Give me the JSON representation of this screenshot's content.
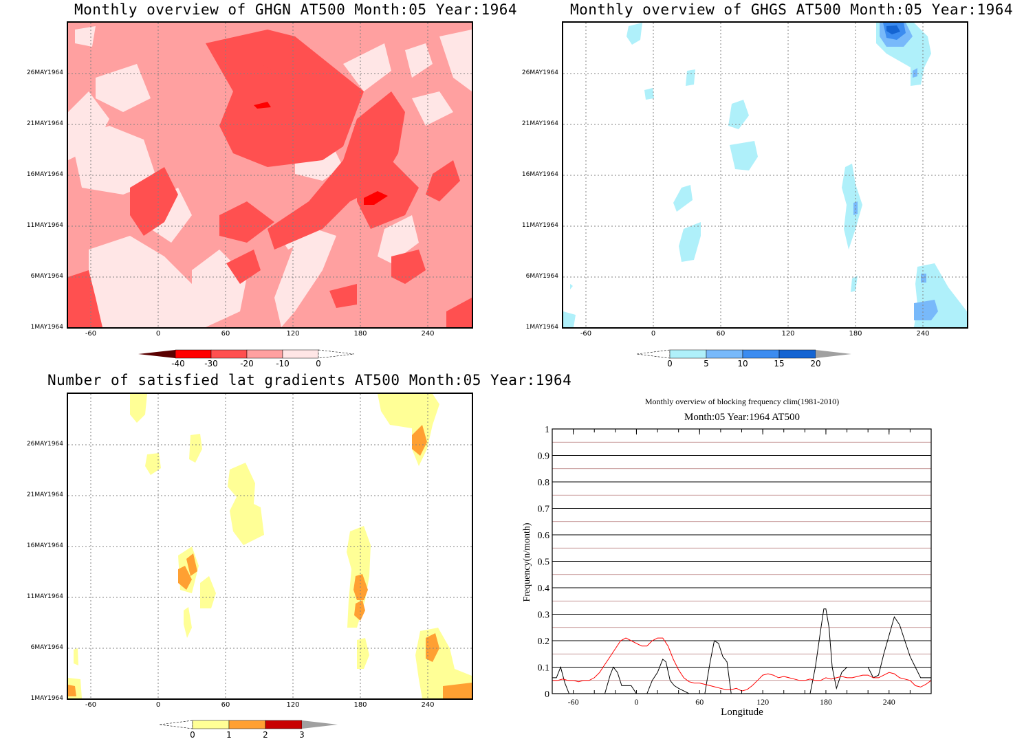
{
  "chart_data": [
    {
      "type": "heatmap",
      "title": "Monthly overview of GHGN AT500 Month:05 Year:1964",
      "x_ticks": [
        "-60",
        "0",
        "60",
        "120",
        "180",
        "240"
      ],
      "y_ticks": [
        "1MAY1964",
        "6MAY1964",
        "11MAY1964",
        "16MAY1964",
        "21MAY1964",
        "26MAY1964"
      ],
      "xlim": [
        -80,
        280
      ],
      "colorbar_labels": [
        "-40",
        "-30",
        "-20",
        "-10",
        "0"
      ],
      "colors": [
        "#5a0000",
        "#ff0000",
        "#ff5050",
        "#ffa0a0",
        "#ffe6e6"
      ]
    },
    {
      "type": "heatmap",
      "title": "Monthly overview of GHGS AT500 Month:05 Year:1964",
      "x_ticks": [
        "-60",
        "0",
        "60",
        "120",
        "180",
        "240"
      ],
      "y_ticks": [
        "1MAY1964",
        "6MAY1964",
        "11MAY1964",
        "16MAY1964",
        "21MAY1964",
        "26MAY1964"
      ],
      "xlim": [
        -80,
        280
      ],
      "colorbar_labels": [
        "0",
        "5",
        "10",
        "15",
        "20"
      ],
      "colors": [
        "#aff0fa",
        "#78b9fa",
        "#3c8cf0",
        "#1464d2",
        "#a0a0a0"
      ]
    },
    {
      "type": "heatmap",
      "title": "Number of satisfied lat gradients AT500 Month:05 Year:1964",
      "x_ticks": [
        "-60",
        "0",
        "60",
        "120",
        "180",
        "240"
      ],
      "y_ticks": [
        "1MAY1964",
        "6MAY1964",
        "11MAY1964",
        "16MAY1964",
        "21MAY1964",
        "26MAY1964"
      ],
      "xlim": [
        -80,
        280
      ],
      "colorbar_labels": [
        "0",
        "1",
        "2",
        "3"
      ],
      "colors": [
        "#ffff96",
        "#ffa032",
        "#c80000",
        "#a0a0a0"
      ]
    },
    {
      "type": "line",
      "title": "Monthly overview of blocking frequency clim(1981-2010)",
      "subtitle": "Month:05 Year:1964  AT500",
      "xlabel": "Longitude",
      "ylabel": "Frequency(n/month)",
      "xlim": [
        -80,
        280
      ],
      "ylim": [
        0,
        1
      ],
      "x_ticks": [
        "-60",
        "0",
        "60",
        "120",
        "180",
        "240"
      ],
      "y_ticks": [
        "0",
        "0.1",
        "0.2",
        "0.3",
        "0.4",
        "0.5",
        "0.6",
        "0.7",
        "0.8",
        "0.9",
        "1"
      ],
      "series": [
        {
          "color": "#000000",
          "x": [
            -80,
            -76,
            -72,
            -68,
            -64,
            -60,
            -50,
            -40,
            -30,
            -25,
            -22,
            -18,
            -14,
            -10,
            -5,
            0,
            5,
            10,
            15,
            20,
            25,
            28,
            32,
            36,
            40,
            45,
            50,
            55,
            60,
            65,
            70,
            74,
            78,
            82,
            86,
            90,
            95,
            100,
            110,
            120,
            130,
            140,
            150,
            160,
            165,
            170,
            175,
            178,
            180,
            183,
            186,
            190,
            195,
            200,
            210,
            220,
            225,
            230,
            235,
            240,
            245,
            250,
            255,
            260,
            265,
            270,
            280
          ],
          "y": [
            0.06,
            0.06,
            0.1,
            0.04,
            0.0,
            0.0,
            0.0,
            0.0,
            0.0,
            0.07,
            0.1,
            0.08,
            0.03,
            0.03,
            0.03,
            0.0,
            0.0,
            0.0,
            0.05,
            0.08,
            0.13,
            0.12,
            0.05,
            0.03,
            0.02,
            0.01,
            0.0,
            0.0,
            0.0,
            0.0,
            0.12,
            0.2,
            0.19,
            0.14,
            0.12,
            0.0,
            0.0,
            0.0,
            0.0,
            0.0,
            0.0,
            0.0,
            0.0,
            0.0,
            0.0,
            0.1,
            0.24,
            0.32,
            0.32,
            0.25,
            0.1,
            0.02,
            0.08,
            0.1,
            0.1,
            0.1,
            0.06,
            0.07,
            0.15,
            0.22,
            0.29,
            0.26,
            0.2,
            0.14,
            0.1,
            0.06,
            0.06
          ]
        },
        {
          "color": "#ff0000",
          "x": [
            -80,
            -75,
            -70,
            -65,
            -60,
            -55,
            -50,
            -45,
            -40,
            -35,
            -30,
            -25,
            -20,
            -15,
            -10,
            -5,
            0,
            5,
            10,
            15,
            20,
            25,
            30,
            35,
            40,
            45,
            50,
            55,
            60,
            65,
            70,
            75,
            80,
            85,
            90,
            95,
            100,
            105,
            110,
            115,
            120,
            125,
            130,
            135,
            140,
            145,
            150,
            155,
            160,
            165,
            170,
            175,
            180,
            185,
            190,
            195,
            200,
            205,
            210,
            215,
            220,
            225,
            230,
            235,
            240,
            245,
            250,
            255,
            260,
            265,
            270,
            275,
            280
          ],
          "y": [
            0.05,
            0.05,
            0.055,
            0.05,
            0.05,
            0.045,
            0.05,
            0.05,
            0.06,
            0.08,
            0.11,
            0.14,
            0.17,
            0.2,
            0.21,
            0.2,
            0.19,
            0.18,
            0.18,
            0.2,
            0.21,
            0.21,
            0.18,
            0.13,
            0.09,
            0.06,
            0.045,
            0.04,
            0.04,
            0.035,
            0.03,
            0.025,
            0.02,
            0.015,
            0.015,
            0.02,
            0.01,
            0.015,
            0.03,
            0.05,
            0.07,
            0.075,
            0.07,
            0.06,
            0.065,
            0.06,
            0.055,
            0.05,
            0.05,
            0.055,
            0.05,
            0.05,
            0.06,
            0.055,
            0.06,
            0.065,
            0.06,
            0.06,
            0.065,
            0.07,
            0.07,
            0.06,
            0.06,
            0.07,
            0.08,
            0.075,
            0.06,
            0.055,
            0.05,
            0.03,
            0.025,
            0.035,
            0.05
          ]
        }
      ]
    }
  ]
}
